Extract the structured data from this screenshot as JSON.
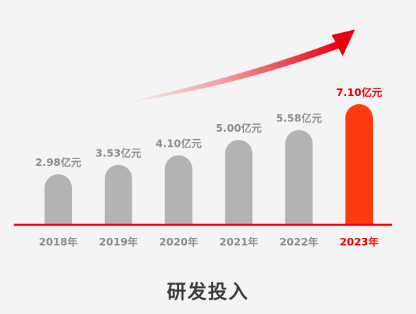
{
  "chart_data": {
    "type": "bar",
    "title": "研发投入",
    "categories": [
      "2018年",
      "2019年",
      "2020年",
      "2021年",
      "2022年",
      "2023年"
    ],
    "values": [
      2.98,
      3.53,
      4.1,
      5.0,
      5.58,
      7.1
    ],
    "data_labels": [
      "2.98亿元",
      "3.53亿元",
      "4.10亿元",
      "5.00亿元",
      "5.58亿元",
      "7.10亿元"
    ],
    "unit": "亿元",
    "grid": false,
    "highlight_index": 5,
    "colors": {
      "bar": "#b3b3b3",
      "highlight_bar": "#ff3b0f",
      "label": "#8a8a8a",
      "highlight_label": "#e60000",
      "axis": "#e8000e",
      "arrow": "#e8000e",
      "title": "#3a3a3a",
      "background": "#f4f4f4"
    },
    "decoration": "trend-arrow"
  }
}
